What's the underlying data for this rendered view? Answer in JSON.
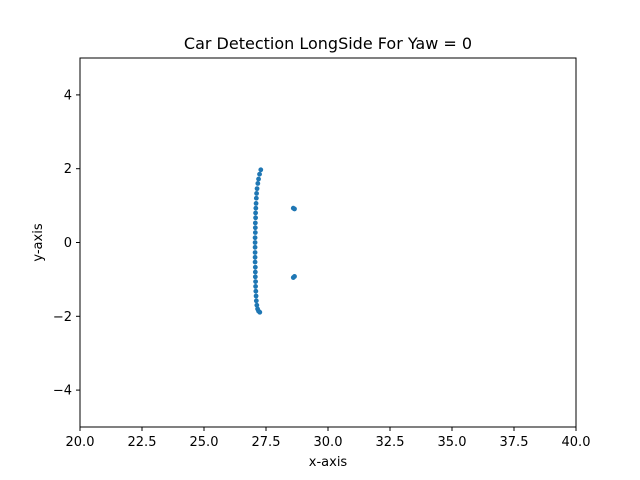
{
  "chart_data": {
    "type": "scatter",
    "title": "Car Detection LongSide For Yaw = 0",
    "xlabel": "x-axis",
    "ylabel": "y-axis",
    "xlim": [
      20.0,
      40.0
    ],
    "ylim": [
      -5,
      5
    ],
    "xticks": [
      20.0,
      22.5,
      25.0,
      27.5,
      30.0,
      32.5,
      35.0,
      37.5,
      40.0
    ],
    "xtick_labels": [
      "20.0",
      "22.5",
      "25.0",
      "27.5",
      "30.0",
      "32.5",
      "35.0",
      "37.5",
      "40.0"
    ],
    "yticks": [
      -4,
      -2,
      0,
      2,
      4
    ],
    "ytick_labels": [
      "−4",
      "−2",
      "0",
      "2",
      "4"
    ],
    "grid": false,
    "marker_color": "#1f77b4",
    "series": [
      {
        "x": [
          27.29,
          27.24,
          27.2,
          27.17,
          27.14,
          27.12,
          27.11,
          27.1,
          27.09,
          27.08,
          27.08,
          27.07,
          27.07,
          27.07,
          27.06,
          27.06,
          27.06,
          27.06,
          27.06,
          27.06,
          27.07,
          27.07,
          27.07,
          27.08,
          27.08,
          27.09,
          27.1,
          27.11,
          27.13,
          27.16,
          27.2,
          27.25,
          28.6,
          28.65,
          28.6,
          28.65
        ],
        "y": [
          1.97,
          1.85,
          1.72,
          1.6,
          1.46,
          1.33,
          1.2,
          1.06,
          0.93,
          0.8,
          0.67,
          0.53,
          0.4,
          0.27,
          0.13,
          0.0,
          -0.13,
          -0.27,
          -0.4,
          -0.53,
          -0.67,
          -0.8,
          -0.93,
          -1.06,
          -1.19,
          -1.32,
          -1.45,
          -1.58,
          -1.7,
          -1.8,
          -1.86,
          -1.89,
          0.93,
          0.91,
          -0.95,
          -0.92
        ]
      }
    ]
  }
}
